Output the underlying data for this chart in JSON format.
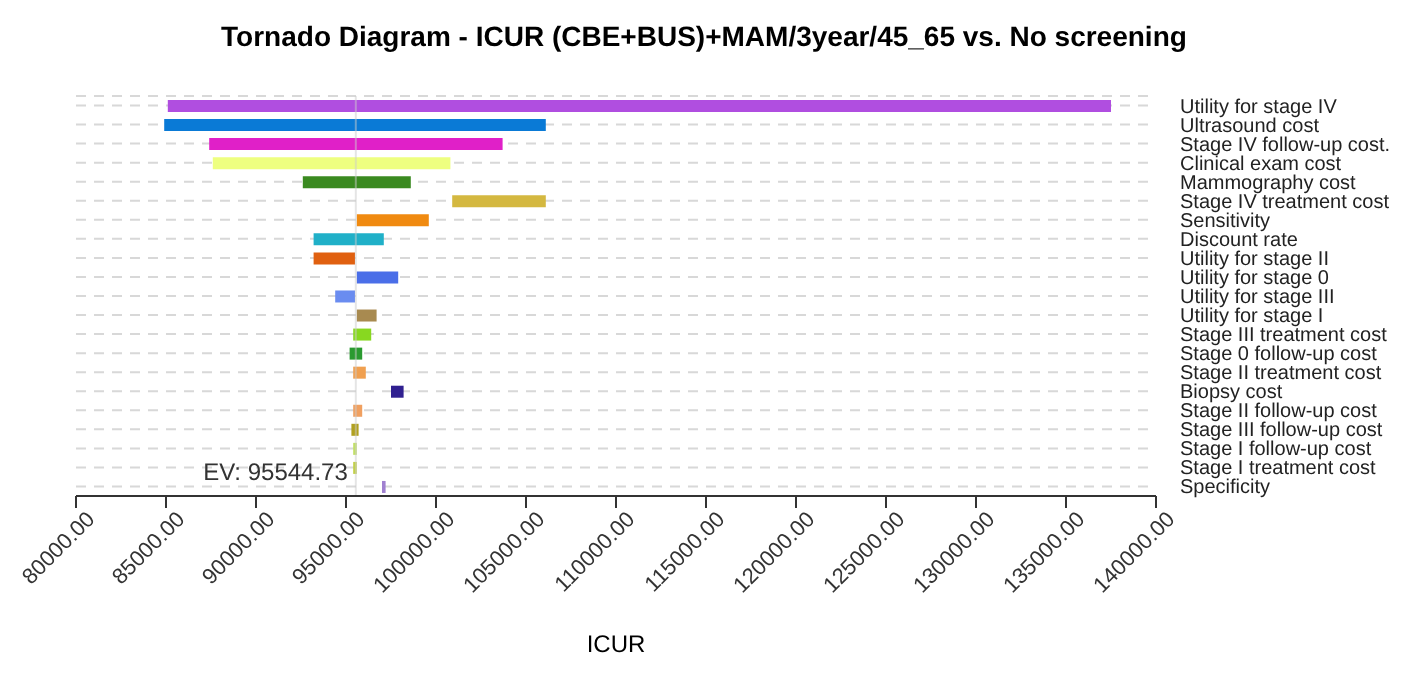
{
  "chart_data": {
    "type": "bar",
    "orientation": "horizontal",
    "title": "Tornado Diagram - ICUR (CBE+BUS)+MAM/3year/45_65 vs. No screening",
    "xlabel": "ICUR",
    "categories": [
      "Utility for stage IV",
      "Ultrasound cost",
      "Stage IV follow-up cost.",
      "Clinical exam cost",
      "Mammography cost",
      "Stage IV treatment cost",
      "Sensitivity",
      "Discount rate",
      "Utility for stage II",
      "Utility for stage 0",
      "Utility for stage III",
      "Utility for stage I",
      "Stage III treatment cost",
      "Stage 0 follow-up cost",
      "Stage II treatment cost",
      "Biopsy cost",
      "Stage II follow-up cost",
      "Stage III follow-up cost",
      "Stage I follow-up cost",
      "Stage I treatment cost",
      "Specificity"
    ],
    "base": [
      85100,
      84900,
      87400,
      87600,
      92600,
      100900,
      95600,
      93200,
      93200,
      95600,
      94400,
      95600,
      95400,
      95200,
      95400,
      97500,
      95400,
      95300,
      95400,
      95400,
      97000
    ],
    "values": [
      52400,
      21200,
      16300,
      13200,
      6000,
      5200,
      4000,
      3900,
      2300,
      2300,
      1100,
      1100,
      1000,
      700,
      700,
      700,
      500,
      400,
      200,
      200,
      200
    ],
    "colors": [
      "#b04ee0",
      "#0a7ad6",
      "#e020c8",
      "#eeff80",
      "#3a8a20",
      "#d4b840",
      "#f08a10",
      "#20b0c8",
      "#e06010",
      "#4a6ee8",
      "#6a8cf0",
      "#a88a50",
      "#88d820",
      "#2a9a30",
      "#f0a050",
      "#302090",
      "#f0a060",
      "#b0a020",
      "#c0e060",
      "#c0d040",
      "#a080d0"
    ],
    "xlim": [
      80000,
      140000
    ],
    "xticks": [
      {
        "value": 80000,
        "label": "80000.00"
      },
      {
        "value": 85000,
        "label": "85000.00"
      },
      {
        "value": 90000,
        "label": "90000.00"
      },
      {
        "value": 95000,
        "label": "95000.00"
      },
      {
        "value": 100000,
        "label": "100000.00"
      },
      {
        "value": 105000,
        "label": "105000.00"
      },
      {
        "value": 110000,
        "label": "110000.00"
      },
      {
        "value": 115000,
        "label": "115000.00"
      },
      {
        "value": 120000,
        "label": "120000.00"
      },
      {
        "value": 125000,
        "label": "125000.00"
      },
      {
        "value": 130000,
        "label": "130000.00"
      },
      {
        "value": 135000,
        "label": "135000.00"
      },
      {
        "value": 140000,
        "label": "140000.00"
      }
    ],
    "ref_lines": [
      {
        "axis": "x",
        "value": 95544.73,
        "label": "EV: 95544.73",
        "color": "#cccccc"
      }
    ],
    "grid": "y",
    "legend": false
  }
}
